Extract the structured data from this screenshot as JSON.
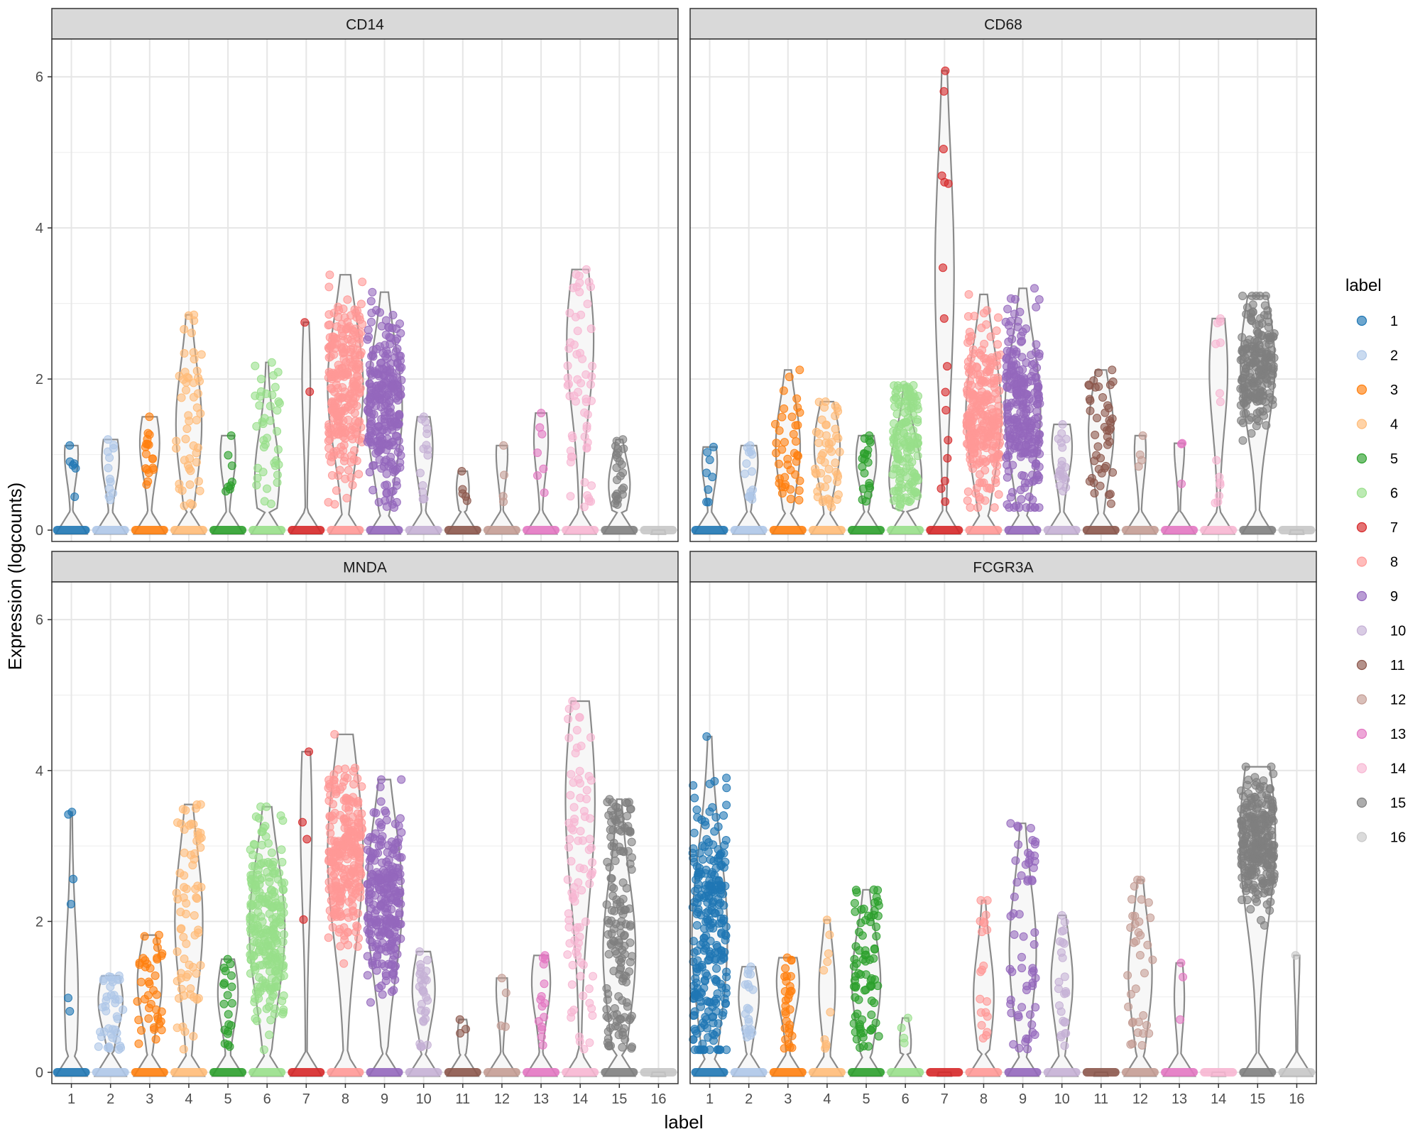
{
  "chart_data": {
    "type": "violin",
    "ylabel": "Expression (logcounts)",
    "xlabel": "label",
    "categories": [
      "1",
      "2",
      "3",
      "4",
      "5",
      "6",
      "7",
      "8",
      "9",
      "10",
      "11",
      "12",
      "13",
      "14",
      "15",
      "16"
    ],
    "ylim": [
      -0.15,
      6.5
    ],
    "y_ticks": [
      0,
      2,
      4,
      6
    ],
    "grid": true,
    "legend": {
      "title": "label",
      "position": "right",
      "entries": [
        "1",
        "2",
        "3",
        "4",
        "5",
        "6",
        "7",
        "8",
        "9",
        "10",
        "11",
        "12",
        "13",
        "14",
        "15",
        "16"
      ]
    },
    "colors": [
      "#1f77b4",
      "#aec7e8",
      "#ff7f0e",
      "#ffbb78",
      "#2ca02c",
      "#98df8a",
      "#d62728",
      "#ff9896",
      "#9467bd",
      "#c5b0d5",
      "#8c564b",
      "#c49c94",
      "#e377c2",
      "#f7b6d2",
      "#7f7f7f",
      "#c7c7c7"
    ],
    "panels": [
      {
        "title": "CD14",
        "series": [
          {
            "label": "1",
            "max": 1.12,
            "upper_median": 1.0,
            "n_expr": 6
          },
          {
            "label": "2",
            "max": 1.2,
            "upper_median": 0.95,
            "n_expr": 12
          },
          {
            "label": "3",
            "max": 1.5,
            "upper_median": 1.15,
            "n_expr": 18
          },
          {
            "label": "4",
            "max": 2.85,
            "upper_median": 1.4,
            "n_expr": 50
          },
          {
            "label": "5",
            "max": 1.25,
            "upper_median": 1.0,
            "n_expr": 8
          },
          {
            "label": "6",
            "max": 2.22,
            "upper_median": 0.7,
            "n_expr": 40
          },
          {
            "label": "7",
            "max": 2.75,
            "upper_median": 2.0,
            "n_expr": 2
          },
          {
            "label": "8",
            "max": 3.38,
            "upper_median": 1.9,
            "n_expr": 900
          },
          {
            "label": "9",
            "max": 3.15,
            "upper_median": 1.6,
            "n_expr": 600
          },
          {
            "label": "10",
            "max": 1.5,
            "upper_median": 1.1,
            "n_expr": 14
          },
          {
            "label": "11",
            "max": 0.78,
            "upper_median": 0.55,
            "n_expr": 5
          },
          {
            "label": "12",
            "max": 1.12,
            "upper_median": 1.0,
            "n_expr": 4
          },
          {
            "label": "13",
            "max": 1.55,
            "upper_median": 1.2,
            "n_expr": 7
          },
          {
            "label": "14",
            "max": 3.45,
            "upper_median": 2.5,
            "n_expr": 60
          },
          {
            "label": "15",
            "max": 1.2,
            "upper_median": 0.6,
            "n_expr": 24
          },
          {
            "label": "16",
            "max": 0,
            "upper_median": 0,
            "n_expr": 0
          }
        ]
      },
      {
        "title": "CD68",
        "series": [
          {
            "label": "1",
            "max": 1.1,
            "upper_median": 0.9,
            "n_expr": 8
          },
          {
            "label": "2",
            "max": 1.12,
            "upper_median": 0.9,
            "n_expr": 14
          },
          {
            "label": "3",
            "max": 2.12,
            "upper_median": 1.1,
            "n_expr": 40
          },
          {
            "label": "4",
            "max": 1.7,
            "upper_median": 1.1,
            "n_expr": 50
          },
          {
            "label": "5",
            "max": 1.25,
            "upper_median": 0.95,
            "n_expr": 20
          },
          {
            "label": "6",
            "max": 1.92,
            "upper_median": 0.7,
            "n_expr": 150
          },
          {
            "label": "7",
            "max": 6.08,
            "upper_median": 3.4,
            "n_expr": 16
          },
          {
            "label": "8",
            "max": 3.12,
            "upper_median": 1.55,
            "n_expr": 800
          },
          {
            "label": "9",
            "max": 3.2,
            "upper_median": 1.6,
            "n_expr": 700
          },
          {
            "label": "10",
            "max": 1.4,
            "upper_median": 1.1,
            "n_expr": 20
          },
          {
            "label": "11",
            "max": 2.12,
            "upper_median": 1.3,
            "n_expr": 45
          },
          {
            "label": "12",
            "max": 1.25,
            "upper_median": 1.05,
            "n_expr": 4
          },
          {
            "label": "13",
            "max": 1.15,
            "upper_median": 1.1,
            "n_expr": 3
          },
          {
            "label": "14",
            "max": 2.8,
            "upper_median": 2.1,
            "n_expr": 14
          },
          {
            "label": "15",
            "max": 3.1,
            "upper_median": 2.2,
            "n_expr": 200
          },
          {
            "label": "16",
            "max": 0,
            "upper_median": 0,
            "n_expr": 0
          }
        ]
      },
      {
        "title": "MNDA",
        "series": [
          {
            "label": "1",
            "max": 3.45,
            "upper_median": 1.0,
            "n_expr": 6
          },
          {
            "label": "2",
            "max": 1.28,
            "upper_median": 0.95,
            "n_expr": 40
          },
          {
            "label": "3",
            "max": 1.82,
            "upper_median": 1.2,
            "n_expr": 40
          },
          {
            "label": "4",
            "max": 3.55,
            "upper_median": 2.0,
            "n_expr": 70
          },
          {
            "label": "5",
            "max": 1.5,
            "upper_median": 1.05,
            "n_expr": 20
          },
          {
            "label": "6",
            "max": 3.52,
            "upper_median": 1.9,
            "n_expr": 250
          },
          {
            "label": "7",
            "max": 4.25,
            "upper_median": 3.3,
            "n_expr": 4
          },
          {
            "label": "8",
            "max": 4.48,
            "upper_median": 2.9,
            "n_expr": 1000
          },
          {
            "label": "9",
            "max": 3.88,
            "upper_median": 2.3,
            "n_expr": 800
          },
          {
            "label": "10",
            "max": 1.6,
            "upper_median": 1.1,
            "n_expr": 30
          },
          {
            "label": "11",
            "max": 0.7,
            "upper_median": 0.5,
            "n_expr": 3
          },
          {
            "label": "12",
            "max": 1.25,
            "upper_median": 1.1,
            "n_expr": 4
          },
          {
            "label": "13",
            "max": 1.55,
            "upper_median": 1.2,
            "n_expr": 15
          },
          {
            "label": "14",
            "max": 4.92,
            "upper_median": 3.6,
            "n_expr": 90
          },
          {
            "label": "15",
            "max": 3.62,
            "upper_median": 1.6,
            "n_expr": 150
          },
          {
            "label": "16",
            "max": 0,
            "upper_median": 0,
            "n_expr": 0
          }
        ]
      },
      {
        "title": "FCGR3A",
        "series": [
          {
            "label": "1",
            "max": 4.45,
            "upper_median": 1.8,
            "n_expr": 350
          },
          {
            "label": "2",
            "max": 1.4,
            "upper_median": 1.0,
            "n_expr": 20
          },
          {
            "label": "3",
            "max": 1.52,
            "upper_median": 1.2,
            "n_expr": 30
          },
          {
            "label": "4",
            "max": 2.02,
            "upper_median": 1.1,
            "n_expr": 10
          },
          {
            "label": "5",
            "max": 2.42,
            "upper_median": 1.2,
            "n_expr": 80
          },
          {
            "label": "6",
            "max": 0.72,
            "upper_median": 0.4,
            "n_expr": 4
          },
          {
            "label": "7",
            "max": 0,
            "upper_median": 0,
            "n_expr": 0
          },
          {
            "label": "8",
            "max": 2.28,
            "upper_median": 1.0,
            "n_expr": 20
          },
          {
            "label": "9",
            "max": 3.3,
            "upper_median": 1.6,
            "n_expr": 60
          },
          {
            "label": "10",
            "max": 2.08,
            "upper_median": 1.2,
            "n_expr": 25
          },
          {
            "label": "11",
            "max": 0,
            "upper_median": 0,
            "n_expr": 0
          },
          {
            "label": "12",
            "max": 2.55,
            "upper_median": 1.3,
            "n_expr": 35
          },
          {
            "label": "13",
            "max": 1.45,
            "upper_median": 1.0,
            "n_expr": 3
          },
          {
            "label": "14",
            "max": 0,
            "upper_median": 0,
            "n_expr": 0
          },
          {
            "label": "15",
            "max": 4.05,
            "upper_median": 3.1,
            "n_expr": 250
          },
          {
            "label": "16",
            "max": 1.55,
            "upper_median": 1.55,
            "n_expr": 1
          }
        ]
      }
    ]
  }
}
